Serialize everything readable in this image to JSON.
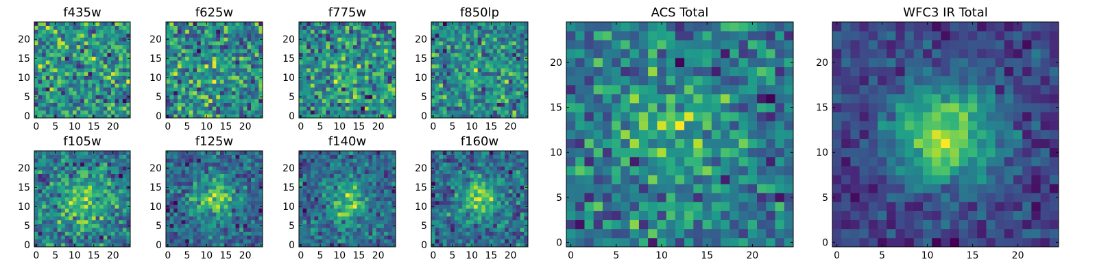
{
  "chart_data": {
    "type": "heatmap",
    "colormap": "viridis",
    "panels": [
      {
        "title": "f435w",
        "xticks": [
          0,
          5,
          10,
          15,
          20
        ],
        "yticks": [
          0,
          5,
          10,
          15,
          20
        ],
        "xlim": [
          0,
          24
        ],
        "ylim": [
          0,
          24
        ],
        "grid_size": 25,
        "blob": {
          "strength": 0.0,
          "center": [
            12,
            12
          ],
          "sigma": 4.0
        },
        "noise": 0.55,
        "seed": 11
      },
      {
        "title": "f625w",
        "xticks": [
          0,
          5,
          10,
          15,
          20
        ],
        "yticks": [
          0,
          5,
          10,
          15,
          20
        ],
        "xlim": [
          0,
          24
        ],
        "ylim": [
          0,
          24
        ],
        "grid_size": 25,
        "blob": {
          "strength": 0.05,
          "center": [
            12,
            12
          ],
          "sigma": 4.0
        },
        "noise": 0.55,
        "seed": 23
      },
      {
        "title": "f775w",
        "xticks": [
          0,
          5,
          10,
          15,
          20
        ],
        "yticks": [
          0,
          5,
          10,
          15,
          20
        ],
        "xlim": [
          0,
          24
        ],
        "ylim": [
          0,
          24
        ],
        "grid_size": 25,
        "blob": {
          "strength": 0.15,
          "center": [
            12,
            11
          ],
          "sigma": 3.5
        },
        "noise": 0.5,
        "seed": 37
      },
      {
        "title": "f850lp",
        "xticks": [
          0,
          5,
          10,
          15,
          20
        ],
        "yticks": [
          0,
          5,
          10,
          15,
          20
        ],
        "xlim": [
          0,
          24
        ],
        "ylim": [
          0,
          24
        ],
        "grid_size": 25,
        "blob": {
          "strength": 0.12,
          "center": [
            12,
            12
          ],
          "sigma": 4.0
        },
        "noise": 0.5,
        "seed": 41
      },
      {
        "title": "f105w",
        "xticks": [
          0,
          5,
          10,
          15,
          20
        ],
        "yticks": [
          0,
          5,
          10,
          15,
          20
        ],
        "xlim": [
          0,
          24
        ],
        "ylim": [
          0,
          24
        ],
        "grid_size": 25,
        "blob": {
          "strength": 0.3,
          "center": [
            12,
            11
          ],
          "sigma": 4.5
        },
        "noise": 0.35,
        "seed": 53
      },
      {
        "title": "f125w",
        "xticks": [
          0,
          5,
          10,
          15,
          20
        ],
        "yticks": [
          0,
          5,
          10,
          15,
          20
        ],
        "xlim": [
          0,
          24
        ],
        "ylim": [
          0,
          24
        ],
        "grid_size": 25,
        "blob": {
          "strength": 0.4,
          "center": [
            12,
            12
          ],
          "sigma": 4.0
        },
        "noise": 0.3,
        "seed": 67
      },
      {
        "title": "f140w",
        "xticks": [
          0,
          5,
          10,
          15,
          20
        ],
        "yticks": [
          0,
          5,
          10,
          15,
          20
        ],
        "xlim": [
          0,
          24
        ],
        "ylim": [
          0,
          24
        ],
        "grid_size": 25,
        "blob": {
          "strength": 0.4,
          "center": [
            12,
            11
          ],
          "sigma": 4.0
        },
        "noise": 0.32,
        "seed": 71
      },
      {
        "title": "f160w",
        "xticks": [
          0,
          5,
          10,
          15,
          20
        ],
        "yticks": [
          0,
          5,
          10,
          15,
          20
        ],
        "xlim": [
          0,
          24
        ],
        "ylim": [
          0,
          24
        ],
        "grid_size": 25,
        "blob": {
          "strength": 0.45,
          "center": [
            12,
            12
          ],
          "sigma": 3.5
        },
        "noise": 0.3,
        "seed": 83
      },
      {
        "title": "ACS Total",
        "xticks": [
          0,
          5,
          10,
          15,
          20
        ],
        "yticks": [
          0,
          5,
          10,
          15,
          20
        ],
        "xlim": [
          0,
          24
        ],
        "ylim": [
          0,
          24
        ],
        "grid_size": 25,
        "blob": {
          "strength": 0.25,
          "center": [
            11,
            12
          ],
          "sigma": 5.0
        },
        "noise": 0.4,
        "seed": 97
      },
      {
        "title": "WFC3 IR Total",
        "xticks": [
          0,
          5,
          10,
          15,
          20
        ],
        "yticks": [
          0,
          5,
          10,
          15,
          20
        ],
        "xlim": [
          0,
          24
        ],
        "ylim": [
          0,
          24
        ],
        "grid_size": 25,
        "blob": {
          "strength": 0.7,
          "center": [
            12,
            12
          ],
          "sigma": 4.0
        },
        "noise": 0.25,
        "seed": 101
      }
    ]
  }
}
